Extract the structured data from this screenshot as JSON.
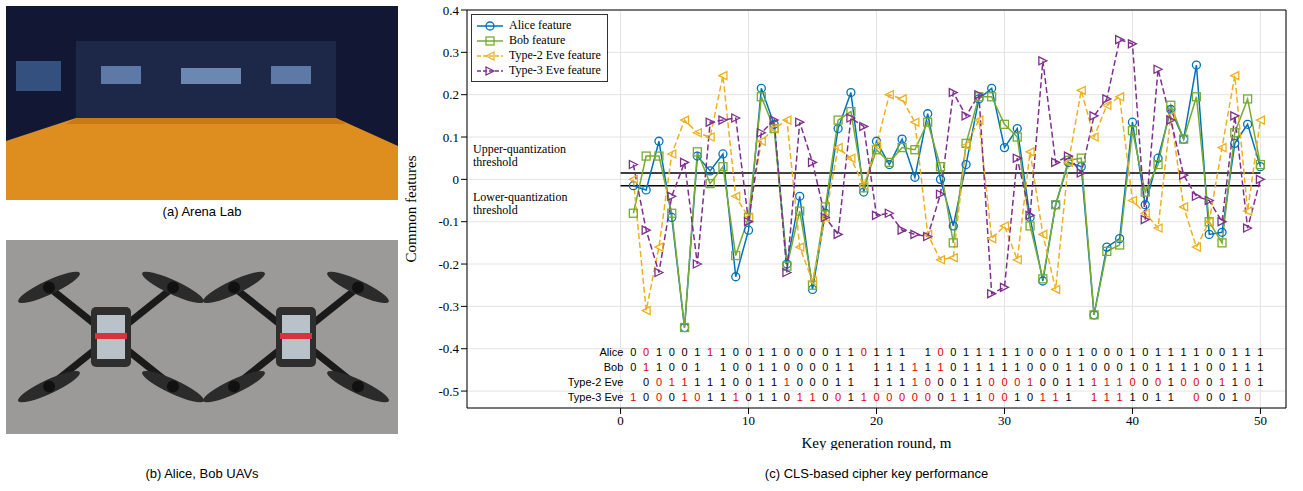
{
  "panels": [
    {
      "caption": "(a) Arena Lab"
    },
    {
      "caption": "(b) Alice, Bob UAVs"
    }
  ],
  "chart_data": {
    "type": "line",
    "title": "(c) CLS-based cipher key performance",
    "x_label": "Key generation round, m",
    "y_label": "Common features",
    "x": [
      1,
      2,
      3,
      4,
      5,
      6,
      7,
      8,
      9,
      10,
      11,
      12,
      13,
      14,
      15,
      16,
      17,
      18,
      19,
      20,
      21,
      22,
      23,
      24,
      25,
      26,
      27,
      28,
      29,
      30,
      31,
      32,
      33,
      34,
      35,
      36,
      37,
      38,
      39,
      40,
      41,
      42,
      43,
      44,
      45,
      46,
      47,
      48,
      49,
      50
    ],
    "xlim": [
      -12,
      52
    ],
    "xticks": [
      0,
      10,
      20,
      30,
      40,
      50
    ],
    "ylim": [
      -0.54,
      0.4
    ],
    "yticks": [
      -0.5,
      -0.4,
      -0.3,
      -0.2,
      -0.1,
      0,
      0.1,
      0.2,
      0.3,
      0.4
    ],
    "grid": true,
    "legend": "upper left",
    "series": [
      {
        "name": "Alice feature",
        "color": "#0072BD",
        "marker": "circle",
        "line_style": "solid",
        "values": [
          -0.015,
          -0.025,
          0.09,
          -0.09,
          -0.35,
          0.055,
          0.02,
          0.06,
          -0.23,
          -0.12,
          0.215,
          0.13,
          -0.2,
          -0.04,
          -0.26,
          -0.08,
          0.12,
          0.205,
          -0.03,
          0.09,
          0.035,
          0.095,
          0.005,
          0.155,
          0.0,
          -0.11,
          0.035,
          0.19,
          0.215,
          0.075,
          0.12,
          -0.09,
          -0.24,
          -0.06,
          0.04,
          0.03,
          -0.32,
          -0.16,
          -0.14,
          0.135,
          -0.06,
          0.05,
          0.165,
          0.095,
          0.27,
          -0.13,
          -0.125,
          0.085,
          0.13,
          0.03
        ]
      },
      {
        "name": "Bob feature",
        "color": "#77AC30",
        "marker": "square",
        "line_style": "solid",
        "values": [
          -0.08,
          0.055,
          0.055,
          -0.08,
          -0.35,
          0.065,
          -0.01,
          0.03,
          -0.18,
          -0.09,
          0.195,
          0.12,
          -0.205,
          -0.075,
          -0.25,
          -0.065,
          0.14,
          0.16,
          -0.02,
          0.07,
          0.04,
          0.075,
          0.07,
          0.135,
          0.03,
          -0.15,
          0.085,
          0.195,
          0.195,
          0.13,
          0.1,
          -0.11,
          -0.235,
          -0.06,
          0.045,
          0.05,
          -0.32,
          -0.17,
          -0.155,
          0.115,
          -0.03,
          0.035,
          0.175,
          0.095,
          0.195,
          -0.1,
          -0.15,
          0.11,
          0.19,
          0.035
        ]
      },
      {
        "name": "Type-2 Eve feature",
        "color": "#EDB120",
        "marker": "triangle-left",
        "line_style": "dashed",
        "values": [
          0.0,
          -0.31,
          -0.16,
          0.06,
          0.14,
          0.11,
          0.1,
          0.245,
          -0.04,
          -0.09,
          0.09,
          0.12,
          0.14,
          -0.16,
          -0.24,
          -0.09,
          0.075,
          0.05,
          -0.015,
          0.08,
          0.2,
          0.19,
          0.135,
          -0.13,
          -0.19,
          -0.185,
          0.08,
          0.14,
          -0.14,
          -0.11,
          -0.19,
          0.065,
          -0.13,
          -0.26,
          0.04,
          0.21,
          0.1,
          0.175,
          0.195,
          -0.05,
          -0.08,
          -0.115,
          0.15,
          -0.065,
          -0.16,
          -0.1,
          0.075,
          0.245,
          -0.075,
          0.14
        ]
      },
      {
        "name": "Type-3 Eve feature",
        "color": "#7E2F8E",
        "marker": "triangle-right",
        "line_style": "dashed",
        "values": [
          0.035,
          -0.12,
          -0.22,
          -0.04,
          0.04,
          -0.2,
          0.135,
          0.14,
          0.145,
          -0.1,
          0.11,
          0.14,
          -0.22,
          0.135,
          0.04,
          -0.09,
          -0.13,
          0.145,
          0.125,
          -0.085,
          -0.08,
          -0.12,
          -0.13,
          -0.135,
          -0.035,
          0.205,
          0.15,
          0.2,
          -0.27,
          -0.255,
          0.05,
          -0.085,
          0.28,
          0.04,
          0.055,
          0.015,
          0.15,
          0.19,
          0.33,
          0.32,
          -0.095,
          0.26,
          0.14,
          0.01,
          -0.04,
          -0.05,
          -0.1,
          0.15,
          -0.115,
          0.0
        ]
      }
    ],
    "thresholds": [
      {
        "label": "Upper-quantization threshold",
        "value": 0.015
      },
      {
        "label": "Lower-quantization threshold",
        "value": -0.015
      }
    ],
    "key_bits": [
      {
        "name": "Alice",
        "bits": [
          0,
          0,
          1,
          0,
          0,
          1,
          1,
          1,
          0,
          0,
          1,
          1,
          0,
          0,
          0,
          0,
          1,
          1,
          0,
          1,
          1,
          1,
          null,
          1,
          0,
          0,
          1,
          1,
          1,
          1,
          1,
          0,
          0,
          0,
          1,
          1,
          0,
          0,
          0,
          1,
          0,
          1,
          1,
          1,
          1,
          0,
          0,
          1,
          1,
          1
        ],
        "mismatch": [
          2,
          7,
          19,
          25
        ]
      },
      {
        "name": "Bob",
        "bits": [
          0,
          1,
          1,
          0,
          0,
          1,
          null,
          1,
          0,
          0,
          1,
          1,
          0,
          0,
          0,
          0,
          1,
          1,
          null,
          1,
          1,
          1,
          1,
          1,
          1,
          0,
          1,
          1,
          1,
          1,
          1,
          0,
          0,
          0,
          1,
          1,
          0,
          0,
          0,
          1,
          0,
          1,
          1,
          1,
          1,
          0,
          0,
          1,
          1,
          1
        ],
        "mismatch": [
          2,
          23,
          25
        ]
      },
      {
        "name": "Type-2 Eve",
        "bits": [
          null,
          0,
          0,
          1,
          1,
          1,
          1,
          1,
          0,
          0,
          1,
          1,
          1,
          0,
          0,
          0,
          1,
          1,
          null,
          1,
          1,
          1,
          1,
          0,
          0,
          0,
          1,
          1,
          0,
          0,
          0,
          1,
          0,
          0,
          1,
          1,
          1,
          1,
          1,
          0,
          0,
          0,
          1,
          0,
          0,
          0,
          1,
          1,
          0,
          1
        ],
        "mismatch": [
          3,
          4,
          5,
          13,
          23,
          24,
          29,
          30,
          31,
          32,
          37,
          38,
          39,
          40,
          42,
          44,
          45,
          47,
          49
        ]
      },
      {
        "name": "Type-3 Eve",
        "bits": [
          1,
          0,
          0,
          0,
          1,
          0,
          1,
          1,
          1,
          0,
          1,
          1,
          0,
          1,
          1,
          0,
          0,
          1,
          1,
          0,
          0,
          0,
          0,
          0,
          0,
          1,
          1,
          1,
          0,
          0,
          1,
          0,
          1,
          1,
          1,
          null,
          1,
          1,
          1,
          1,
          0,
          1,
          1,
          null,
          0,
          0,
          0,
          1,
          0,
          null
        ],
        "mismatch": [
          1,
          3,
          5,
          6,
          9,
          14,
          15,
          17,
          19,
          20,
          21,
          22,
          23,
          24,
          26,
          29,
          30,
          33,
          34,
          37,
          38,
          39,
          45,
          49
        ]
      }
    ]
  }
}
